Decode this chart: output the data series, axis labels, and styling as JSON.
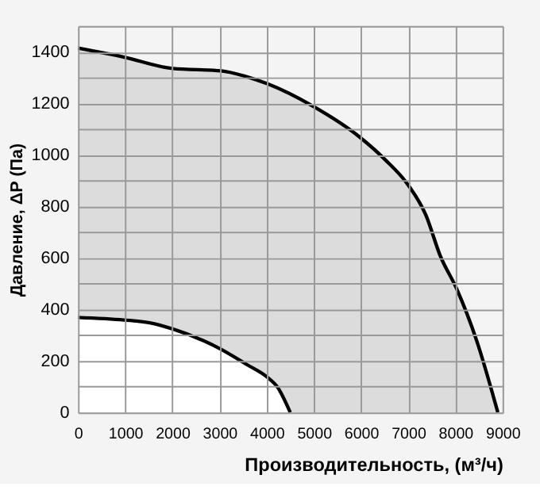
{
  "chart_data": {
    "type": "area",
    "xlabel": "Производительность, (м³/ч)",
    "ylabel": "Давление, ΔP (Па)",
    "xlim": [
      0,
      9000
    ],
    "xticks": [
      0,
      1000,
      2000,
      3000,
      4000,
      5000,
      6000,
      7000,
      8000,
      9000
    ],
    "ylim": [
      0,
      1500
    ],
    "yticks": [
      0,
      {
        "value": 100,
        "label": null
      },
      200,
      {
        "value": 300,
        "label": null
      },
      400,
      {
        "value": 500,
        "label": null
      },
      600,
      {
        "value": 700,
        "label": null
      },
      800,
      {
        "value": 900,
        "label": null
      },
      1000,
      {
        "value": 1100,
        "label": null
      },
      1200,
      {
        "value": 1300,
        "label": null
      },
      1400,
      {
        "value": 1500,
        "label": null
      }
    ],
    "grid": true,
    "series": [
      {
        "color": "#dcdcdc",
        "x": [
          0,
          976,
          2007,
          3035,
          3523,
          4011,
          4987,
          5963,
          6506,
          6994,
          7375,
          7677,
          8025,
          8458,
          8900
        ],
        "values": [
          1414,
          1379,
          1335,
          1326,
          1306,
          1276,
          1188,
          1070,
          982,
          884,
          766,
          609,
          481,
          275,
          0
        ]
      },
      {
        "color": "#ffffff",
        "x": [
          0,
          976,
          1519,
          2007,
          3035,
          3578,
          4011,
          4229,
          4500
        ],
        "values": [
          369,
          359,
          348,
          324,
          245,
          186,
          137,
          98,
          0
        ]
      }
    ]
  }
}
